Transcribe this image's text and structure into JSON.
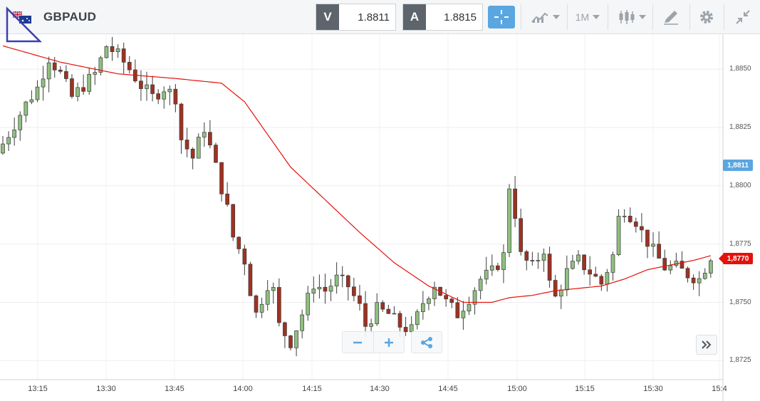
{
  "toolbar": {
    "symbol": "GBPAUD",
    "bid_tag": "V",
    "bid_value": "1.8811",
    "ask_tag": "A",
    "ask_value": "1.8815",
    "timeframe_label": "1M",
    "icons": [
      "flag-icon",
      "crosshair-icon",
      "indicators-icon",
      "timeframe-dropdown",
      "candle-type-icon",
      "drawing-tool-icon",
      "gear-icon",
      "collapse-icon"
    ]
  },
  "colors": {
    "bull_candle": "#8fbf7f",
    "bear_candle": "#9e3222",
    "moving_average": "#e3120b",
    "accent": "#5aa6e0",
    "last_price": "#e3120b"
  },
  "chart_data": {
    "type": "candlestick",
    "y_axis_ticks": [
      "1,8850",
      "1,8825",
      "1,8800",
      "1,8775",
      "1,8750",
      "1,8725"
    ],
    "x_axis_ticks": [
      "13:15",
      "13:30",
      "13:45",
      "14:00",
      "14:15",
      "14:30",
      "14:45",
      "15:00",
      "15:15",
      "15:30",
      "15:4"
    ],
    "ylim": [
      1.8719,
      1.8865
    ],
    "ask_price_label": "1,8811",
    "last_price_label": "1,8770",
    "grid": true,
    "candle_interval": "1M",
    "close_path": [
      [
        0,
        1.8818
      ],
      [
        4,
        1.8835
      ],
      [
        6,
        1.8842
      ],
      [
        8,
        1.8855
      ],
      [
        10,
        1.8848
      ],
      [
        12,
        1.8838
      ],
      [
        14,
        1.8843
      ],
      [
        16,
        1.8848
      ],
      [
        18,
        1.886
      ],
      [
        20,
        1.8856
      ],
      [
        22,
        1.885
      ],
      [
        24,
        1.8843
      ],
      [
        26,
        1.8838
      ],
      [
        28,
        1.8842
      ],
      [
        30,
        1.8838
      ],
      [
        31,
        1.882
      ],
      [
        33,
        1.8812
      ],
      [
        35,
        1.8825
      ],
      [
        37,
        1.8808
      ],
      [
        39,
        1.879
      ],
      [
        40,
        1.8778
      ],
      [
        42,
        1.8768
      ],
      [
        43,
        1.8755
      ],
      [
        44,
        1.8745
      ],
      [
        46,
        1.8758
      ],
      [
        47,
        1.8755
      ],
      [
        48,
        1.874
      ],
      [
        50,
        1.8733
      ],
      [
        52,
        1.8745
      ],
      [
        54,
        1.8758
      ],
      [
        56,
        1.8755
      ],
      [
        58,
        1.876
      ],
      [
        60,
        1.8757
      ],
      [
        62,
        1.8748
      ],
      [
        63,
        1.874
      ],
      [
        65,
        1.8747
      ],
      [
        67,
        1.8745
      ],
      [
        69,
        1.874
      ],
      [
        71,
        1.8738
      ],
      [
        73,
        1.875
      ],
      [
        75,
        1.8758
      ],
      [
        77,
        1.875
      ],
      [
        79,
        1.8745
      ],
      [
        81,
        1.8752
      ],
      [
        83,
        1.876
      ],
      [
        85,
        1.8763
      ],
      [
        87,
        1.877
      ],
      [
        88,
        1.88
      ],
      [
        89,
        1.8788
      ],
      [
        90,
        1.877
      ],
      [
        92,
        1.8765
      ],
      [
        94,
        1.8773
      ],
      [
        95,
        1.8758
      ],
      [
        96,
        1.8752
      ],
      [
        98,
        1.8763
      ],
      [
        100,
        1.8768
      ],
      [
        102,
        1.8763
      ],
      [
        104,
        1.8758
      ],
      [
        106,
        1.877
      ],
      [
        107,
        1.8786
      ],
      [
        108,
        1.879
      ],
      [
        110,
        1.8785
      ],
      [
        111,
        1.878
      ],
      [
        113,
        1.8772
      ],
      [
        115,
        1.8765
      ],
      [
        117,
        1.8765
      ],
      [
        119,
        1.8762
      ],
      [
        121,
        1.876
      ],
      [
        123,
        1.877
      ]
    ],
    "moving_average": [
      [
        0,
        1.886
      ],
      [
        10,
        1.8853
      ],
      [
        20,
        1.8848
      ],
      [
        30,
        1.8846
      ],
      [
        38,
        1.8844
      ],
      [
        42,
        1.8836
      ],
      [
        46,
        1.8822
      ],
      [
        50,
        1.8808
      ],
      [
        56,
        1.8794
      ],
      [
        62,
        1.878
      ],
      [
        68,
        1.8767
      ],
      [
        74,
        1.8757
      ],
      [
        80,
        1.875
      ],
      [
        85,
        1.875
      ],
      [
        88,
        1.8752
      ],
      [
        92,
        1.8753
      ],
      [
        96,
        1.8755
      ],
      [
        100,
        1.8756
      ],
      [
        104,
        1.8757
      ],
      [
        108,
        1.876
      ],
      [
        112,
        1.8764
      ],
      [
        116,
        1.8766
      ],
      [
        120,
        1.8768
      ],
      [
        123,
        1.877
      ]
    ]
  }
}
